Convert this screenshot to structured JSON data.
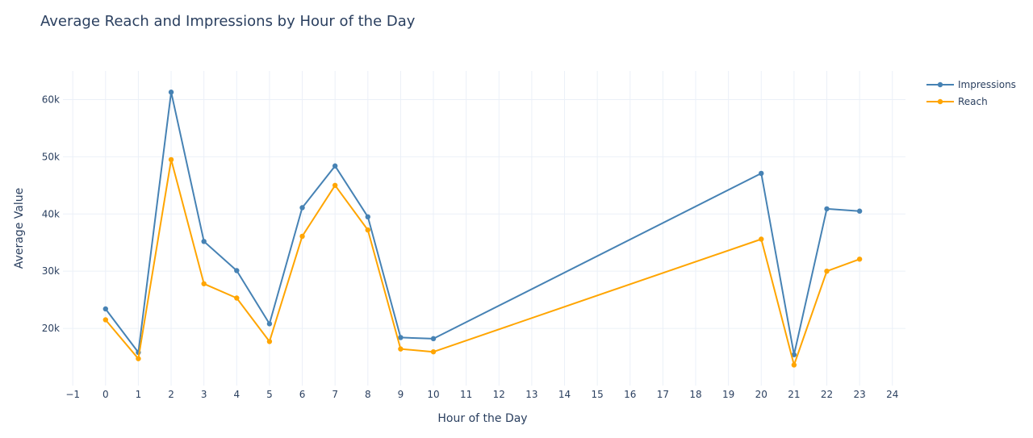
{
  "chart_data": {
    "type": "line",
    "title": "Average Reach and Impressions by Hour of the Day",
    "xlabel": "Hour of the Day",
    "ylabel": "Average Value",
    "x_tick_labels": [
      "−1",
      "0",
      "1",
      "2",
      "3",
      "4",
      "5",
      "6",
      "7",
      "8",
      "9",
      "10",
      "11",
      "12",
      "13",
      "14",
      "15",
      "16",
      "17",
      "18",
      "19",
      "20",
      "21",
      "22",
      "23",
      "24"
    ],
    "x_ticks": [
      -1,
      0,
      1,
      2,
      3,
      4,
      5,
      6,
      7,
      8,
      9,
      10,
      11,
      12,
      13,
      14,
      15,
      16,
      17,
      18,
      19,
      20,
      21,
      22,
      23,
      24
    ],
    "y_ticks": [
      20000,
      30000,
      40000,
      50000,
      60000
    ],
    "y_tick_labels": [
      "20k",
      "30k",
      "40k",
      "50k",
      "60k"
    ],
    "xlim": [
      -1.3,
      24.4
    ],
    "ylim": [
      10000,
      65000
    ],
    "grid": true,
    "legend_position": "top-right",
    "x": [
      0,
      1,
      2,
      3,
      4,
      5,
      6,
      7,
      8,
      9,
      10,
      20,
      21,
      22,
      23
    ],
    "series": [
      {
        "name": "Impressions",
        "color": "#4682b4",
        "values": [
          23400,
          15800,
          61300,
          35200,
          30100,
          20800,
          41100,
          48400,
          39500,
          18400,
          18200,
          47100,
          15400,
          40900,
          40500
        ]
      },
      {
        "name": "Reach",
        "color": "#ffa500",
        "values": [
          21500,
          14700,
          49500,
          27800,
          25300,
          17700,
          36100,
          45000,
          37200,
          16400,
          15900,
          35600,
          13600,
          30000,
          32100
        ]
      }
    ]
  }
}
